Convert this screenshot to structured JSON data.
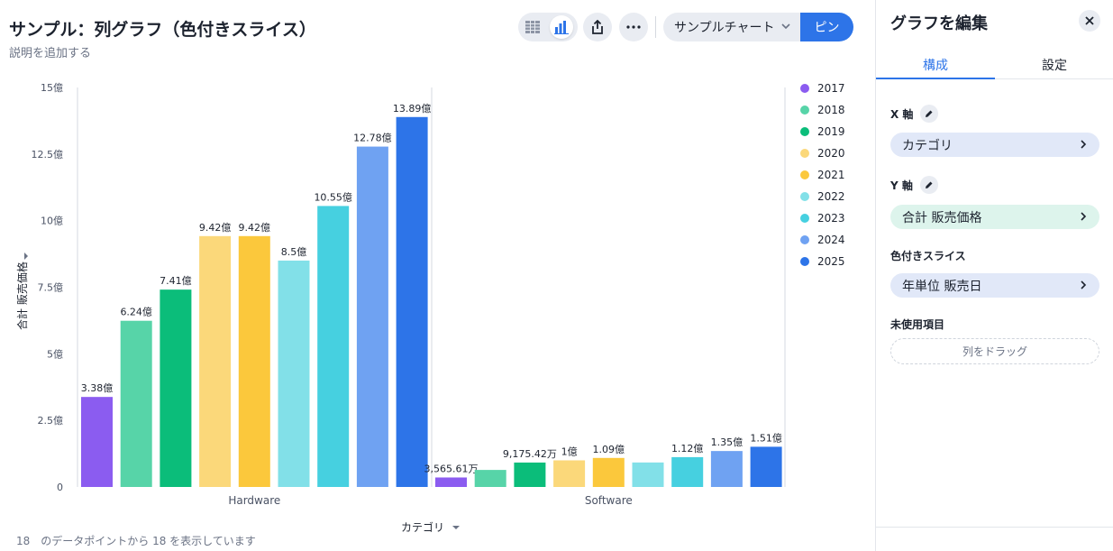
{
  "header": {
    "title": "サンプル：列グラフ（色付きスライス）",
    "subtitle": "説明を追加する",
    "chart_select_label": "サンプルチャート",
    "pin_label": "ピン"
  },
  "colors": {
    "accent": "#2d74e8",
    "series": [
      "#8b5cf0",
      "#57d4a8",
      "#0bbd7a",
      "#fbd87a",
      "#fbc83c",
      "#82e0e8",
      "#46d0e0",
      "#6fa2f2",
      "#2d74e8"
    ]
  },
  "icons": {
    "table": "table-icon",
    "chart": "bar-chart-icon",
    "share": "share-icon",
    "more": "more-icon",
    "chevron": "chevron-down-icon",
    "close": "close-icon",
    "edit": "pencil-icon"
  },
  "chart_data": {
    "type": "bar",
    "categories": [
      "Hardware",
      "Software"
    ],
    "series": [
      {
        "name": "2017",
        "values": [
          338000000,
          35656100
        ],
        "labels": [
          "3.38億",
          "3,565.61万"
        ]
      },
      {
        "name": "2018",
        "values": [
          624000000,
          64000000
        ],
        "labels": [
          "6.24億",
          ""
        ]
      },
      {
        "name": "2019",
        "values": [
          741000000,
          91754200
        ],
        "labels": [
          "7.41億",
          "9,175.42万"
        ]
      },
      {
        "name": "2020",
        "values": [
          942000000,
          100000000
        ],
        "labels": [
          "9.42億",
          "1億"
        ]
      },
      {
        "name": "2021",
        "values": [
          942000000,
          109000000
        ],
        "labels": [
          "9.42億",
          "1.09億"
        ]
      },
      {
        "name": "2022",
        "values": [
          850000000,
          92000000
        ],
        "labels": [
          "8.5億",
          ""
        ]
      },
      {
        "name": "2023",
        "values": [
          1055000000,
          112000000
        ],
        "labels": [
          "10.55億",
          "1.12億"
        ]
      },
      {
        "name": "2024",
        "values": [
          1278000000,
          135000000
        ],
        "labels": [
          "12.78億",
          "1.35億"
        ]
      },
      {
        "name": "2025",
        "values": [
          1389000000,
          151000000
        ],
        "labels": [
          "13.89億",
          "1.51億"
        ]
      }
    ],
    "ylim": [
      0,
      1500000000
    ],
    "yticks": [
      0,
      250000000,
      500000000,
      750000000,
      1000000000,
      1250000000,
      1500000000
    ],
    "ytick_labels": [
      "0",
      "2.5億",
      "5億",
      "7.5億",
      "10億",
      "12.5億",
      "15億"
    ],
    "xlabel": "カテゴリ",
    "ylabel": "合計 販売価格",
    "legend_position": "right",
    "grid": false
  },
  "footer_text": "18　のデータポイントから 18 を表示しています",
  "side_panel": {
    "title": "グラフを編集",
    "tabs": [
      "構成",
      "設定"
    ],
    "x_axis_label": "X 軸",
    "x_axis_value": "カテゴリ",
    "y_axis_label": "Y 軸",
    "y_axis_value": "合計 販売価格",
    "color_slice_label": "色付きスライス",
    "color_slice_value": "年単位 販売日",
    "unused_label": "未使用項目",
    "drop_placeholder": "列をドラッグ"
  }
}
